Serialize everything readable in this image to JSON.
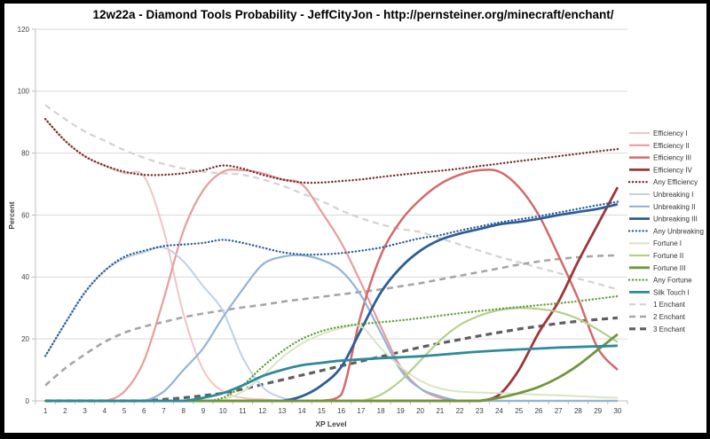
{
  "chart_data": {
    "type": "line",
    "title": "12w22a - Diamond Tools Probability - JeffCityJon - http://pernsteiner.org/minecraft/enchant/",
    "xlabel": "XP Level",
    "ylabel": "Percent",
    "x_ticks": [
      1,
      2,
      3,
      4,
      5,
      6,
      7,
      8,
      9,
      10,
      11,
      12,
      13,
      14,
      15,
      16,
      17,
      18,
      19,
      20,
      21,
      22,
      23,
      24,
      25,
      26,
      27,
      28,
      29,
      30
    ],
    "y_ticks": [
      0,
      20,
      40,
      60,
      80,
      100,
      120
    ],
    "ylim": [
      0,
      120
    ],
    "grid": true,
    "legend_position": "right",
    "grid_color": "#d9d9d9",
    "axis_color": "#bfbfbf",
    "tick_text_color": "#404040",
    "legend_text_color": "#333333",
    "series": [
      {
        "name": "Efficiency I",
        "color": "#f4c3c4",
        "style": "solid",
        "width": 2,
        "values": [
          91,
          84,
          79,
          76,
          73.5,
          72.5,
          55,
          28,
          10,
          3,
          1,
          0.5,
          0,
          0,
          0,
          0,
          0,
          0,
          0,
          0,
          0,
          0,
          0,
          0,
          0,
          0,
          0,
          0,
          0,
          0
        ]
      },
      {
        "name": "Efficiency II",
        "color": "#e89c9e",
        "style": "solid",
        "width": 2.2,
        "values": [
          0,
          0,
          0,
          0,
          3,
          13,
          33,
          55,
          68,
          74,
          74.5,
          73.5,
          71.5,
          70,
          61,
          51,
          38,
          24,
          11,
          4,
          1,
          0,
          0,
          0,
          0,
          0,
          0,
          0,
          0,
          0
        ]
      },
      {
        "name": "Efficiency III",
        "color": "#d4696b",
        "style": "solid",
        "width": 2.5,
        "values": [
          0,
          0,
          0,
          0,
          0,
          0,
          0,
          0,
          0,
          0,
          0,
          0,
          0,
          0,
          0,
          2,
          28,
          47,
          58,
          65,
          70,
          73,
          74.5,
          74,
          69,
          60,
          47,
          33,
          17,
          10
        ]
      },
      {
        "name": "Efficiency IV",
        "color": "#9e3639",
        "style": "solid",
        "width": 2.8,
        "values": [
          0,
          0,
          0,
          0,
          0,
          0,
          0,
          0,
          0,
          0,
          0,
          0,
          0,
          0,
          0,
          0,
          0,
          0,
          0,
          0,
          0,
          0,
          0,
          2,
          10,
          22,
          32,
          45,
          57,
          69
        ]
      },
      {
        "name": "Any Efficiency",
        "color": "#752a2b",
        "style": "dotted",
        "width": 2.4,
        "values": [
          91,
          84,
          79,
          76,
          74,
          73,
          73,
          73.5,
          74.5,
          76,
          75,
          73,
          71.5,
          70.5,
          70.5,
          71,
          71.5,
          72.3,
          73,
          73.7,
          74.3,
          75,
          75.8,
          76.6,
          77.4,
          78.2,
          79,
          79.8,
          80.6,
          81.3
        ]
      },
      {
        "name": "Unbreaking I",
        "color": "#bcd1e8",
        "style": "solid",
        "width": 2,
        "values": [
          14.5,
          25,
          35,
          42,
          46,
          48,
          49.5,
          45,
          37,
          29,
          14,
          4.5,
          1,
          0,
          0,
          0,
          0,
          0,
          0,
          0,
          0,
          0,
          0,
          0,
          0,
          0,
          0,
          0,
          0,
          0
        ]
      },
      {
        "name": "Unbreaking II",
        "color": "#94b3d8",
        "style": "solid",
        "width": 2.2,
        "values": [
          0,
          0,
          0,
          0,
          0,
          0,
          3,
          10,
          17,
          27,
          36,
          44,
          46.5,
          47,
          45.5,
          42,
          34,
          22,
          10,
          4,
          1.5,
          0,
          0,
          0,
          0,
          0,
          0,
          0,
          0,
          0
        ]
      },
      {
        "name": "Unbreaking III",
        "color": "#2e5d96",
        "style": "solid",
        "width": 2.8,
        "values": [
          0,
          0,
          0,
          0,
          0,
          0,
          0,
          0,
          0,
          0,
          0,
          0,
          0,
          1.5,
          5,
          11,
          23,
          35,
          43,
          48.5,
          52,
          54,
          55.5,
          57,
          57.8,
          58.8,
          60,
          61,
          62,
          63.5
        ]
      },
      {
        "name": "Any Unbreaking",
        "color": "#2b5f99",
        "style": "dotted",
        "width": 2.4,
        "values": [
          14.5,
          25,
          35,
          42,
          46.5,
          48.5,
          50,
          50.5,
          51,
          52,
          51,
          49.5,
          48,
          47.3,
          47.3,
          47.7,
          48.5,
          49.5,
          51,
          52.5,
          53.5,
          55,
          56.3,
          57.6,
          58.6,
          59.6,
          60.8,
          62,
          63.2,
          64.3
        ]
      },
      {
        "name": "Fortune I",
        "color": "#d8e6c0",
        "style": "solid",
        "width": 2,
        "values": [
          0,
          0,
          0,
          0,
          0,
          0,
          0,
          0,
          0,
          0.5,
          3,
          8,
          14,
          18.5,
          21.5,
          23.5,
          24,
          17,
          11,
          6.5,
          4,
          3,
          2.7,
          2.5,
          2.3,
          2,
          1.8,
          1.5,
          1.2,
          1
        ]
      },
      {
        "name": "Fortune II",
        "color": "#b4cf8c",
        "style": "solid",
        "width": 2.2,
        "values": [
          0,
          0,
          0,
          0,
          0,
          0,
          0,
          0,
          0,
          0,
          0,
          0,
          0,
          0,
          0,
          0,
          0,
          2,
          6.5,
          13,
          19.5,
          24.5,
          27.5,
          29.3,
          30,
          29.7,
          28.7,
          26.5,
          23,
          19
        ]
      },
      {
        "name": "Fortune III",
        "color": "#71963d",
        "style": "solid",
        "width": 2.8,
        "values": [
          0,
          0,
          0,
          0,
          0,
          0,
          0,
          0,
          0,
          0,
          0,
          0,
          0,
          0,
          0,
          0,
          0,
          0,
          0,
          0,
          0,
          0,
          0,
          1,
          2.5,
          4.5,
          7.5,
          11.5,
          16.5,
          21.5
        ]
      },
      {
        "name": "Any Fortune",
        "color": "#649e36",
        "style": "dotted",
        "width": 2.4,
        "values": [
          0,
          0,
          0,
          0,
          0,
          0,
          0,
          0,
          0,
          1,
          5,
          11,
          16,
          20,
          22.5,
          24,
          24.8,
          25.4,
          26,
          26.7,
          27.5,
          28.3,
          29,
          29.7,
          30.3,
          30.9,
          31.5,
          32.2,
          33,
          33.8
        ]
      },
      {
        "name": "Silk Touch I",
        "color": "#2f8a9b",
        "style": "solid",
        "width": 2.8,
        "values": [
          0,
          0,
          0,
          0,
          0,
          0,
          0,
          0,
          1,
          2.5,
          5,
          8,
          10,
          11.5,
          12.3,
          13,
          13.4,
          13.8,
          14.1,
          14.4,
          14.9,
          15.4,
          15.9,
          16.3,
          16.6,
          16.9,
          17.2,
          17.4,
          17.6,
          17.8
        ]
      },
      {
        "name": "1 Enchant",
        "color": "#d2d2d2",
        "style": "dashed",
        "width": 2.2,
        "values": [
          95.5,
          91,
          87,
          84,
          81,
          78.5,
          76.5,
          75,
          74,
          73.5,
          73,
          71.5,
          69.5,
          67,
          64.5,
          61.5,
          59,
          57,
          55.5,
          54.5,
          52.5,
          50.5,
          48.5,
          46.5,
          44.8,
          43,
          41.3,
          39.5,
          37.8,
          36
        ]
      },
      {
        "name": "2 Enchant",
        "color": "#a6a6a6",
        "style": "dashed",
        "width": 2.6,
        "values": [
          5,
          10.5,
          15,
          19,
          22,
          24,
          25.5,
          27,
          28.2,
          29.2,
          30.2,
          31,
          32,
          32.8,
          33.6,
          34.4,
          35.2,
          36,
          37,
          38,
          39.2,
          40.4,
          41.6,
          42.8,
          44,
          45,
          45.8,
          46.4,
          46.8,
          47
        ]
      },
      {
        "name": "3 Enchant",
        "color": "#5f5f5f",
        "style": "dashed",
        "width": 3.2,
        "values": [
          0,
          0,
          0,
          0,
          0,
          0,
          0.5,
          1,
          1.7,
          2.5,
          3.8,
          5.3,
          6.8,
          8.3,
          9.8,
          11.3,
          12.8,
          14.3,
          15.8,
          17.3,
          18.6,
          19.8,
          21,
          22.1,
          23.2,
          24.1,
          25,
          25.7,
          26.3,
          26.8
        ]
      }
    ]
  }
}
